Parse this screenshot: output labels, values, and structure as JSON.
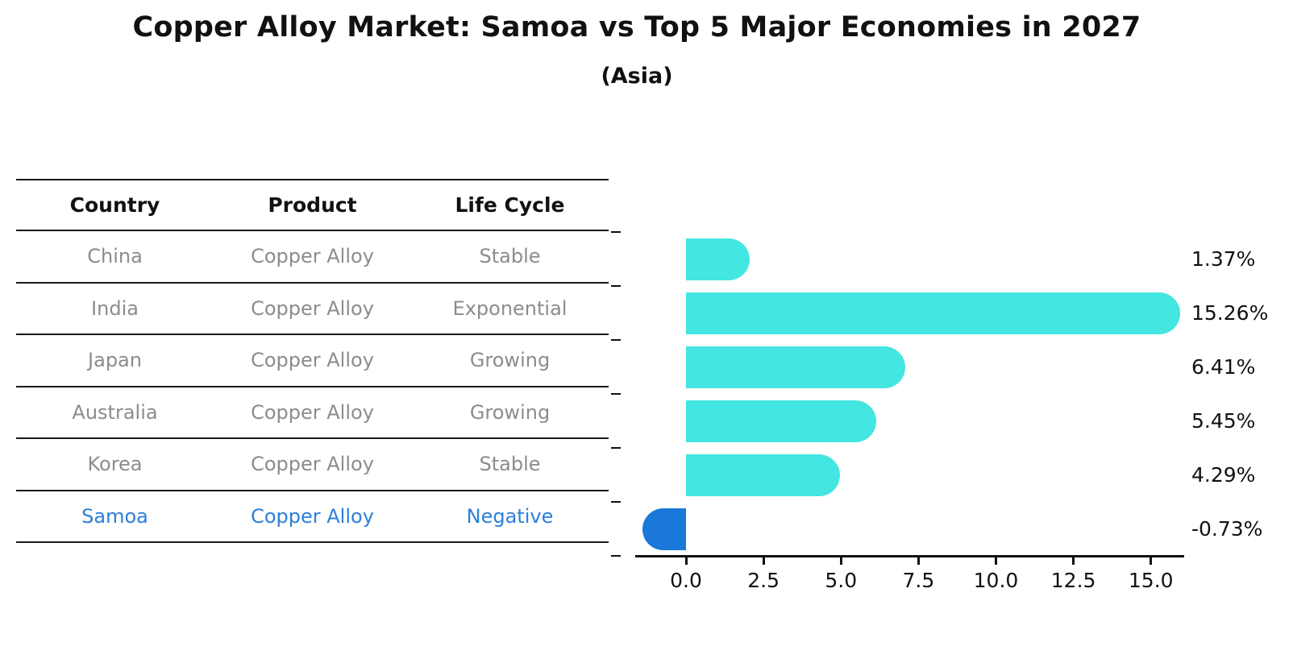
{
  "title": "Copper Alloy Market: Samoa vs Top 5 Major Economies in 2027",
  "subtitle": "(Asia)",
  "table": {
    "headers": [
      "Country",
      "Product",
      "Life Cycle"
    ],
    "rows": [
      {
        "country": "China",
        "product": "Copper Alloy",
        "life_cycle": "Stable",
        "highlight": false
      },
      {
        "country": "India",
        "product": "Copper Alloy",
        "life_cycle": "Exponential",
        "highlight": false
      },
      {
        "country": "Japan",
        "product": "Copper Alloy",
        "life_cycle": "Growing",
        "highlight": false
      },
      {
        "country": "Australia",
        "product": "Copper Alloy",
        "life_cycle": "Growing",
        "highlight": false
      },
      {
        "country": "Korea",
        "product": "Copper Alloy",
        "life_cycle": "Stable",
        "highlight": false
      },
      {
        "country": "Samoa",
        "product": "Copper Alloy",
        "life_cycle": "Negative",
        "highlight": true
      }
    ]
  },
  "chart_data": {
    "type": "bar",
    "orientation": "horizontal",
    "title": "Copper Alloy Market: Samoa vs Top 5 Major Economies in 2027",
    "subtitle": "(Asia)",
    "categories": [
      "China",
      "India",
      "Japan",
      "Australia",
      "Korea",
      "Samoa"
    ],
    "values": [
      1.37,
      15.26,
      6.41,
      5.45,
      4.29,
      -0.73
    ],
    "value_labels": [
      "1.37%",
      "15.26%",
      "6.41%",
      "5.45%",
      "4.29%",
      "-0.73%"
    ],
    "x_ticks": [
      0.0,
      2.5,
      5.0,
      7.5,
      10.0,
      12.5,
      15.0
    ],
    "x_tick_labels": [
      "0.0",
      "2.5",
      "5.0",
      "7.5",
      "10.0",
      "12.5",
      "15.0"
    ],
    "xlim": [
      -1.64,
      16.07
    ],
    "grid": false,
    "legend": false,
    "bar_color": "#43e6e0",
    "highlight_bar_color": "#1a78d8",
    "highlight_category": "Samoa",
    "negative_bar_style": "dotted-edge"
  },
  "colors": {
    "background": "#ffffff",
    "bar_cyan": "#43e6e0",
    "highlight_blue": "#1a78d8",
    "highlight_text_blue": "#2b7fd9",
    "table_text_gray": "#8c8c8c",
    "text_black": "#111111"
  }
}
